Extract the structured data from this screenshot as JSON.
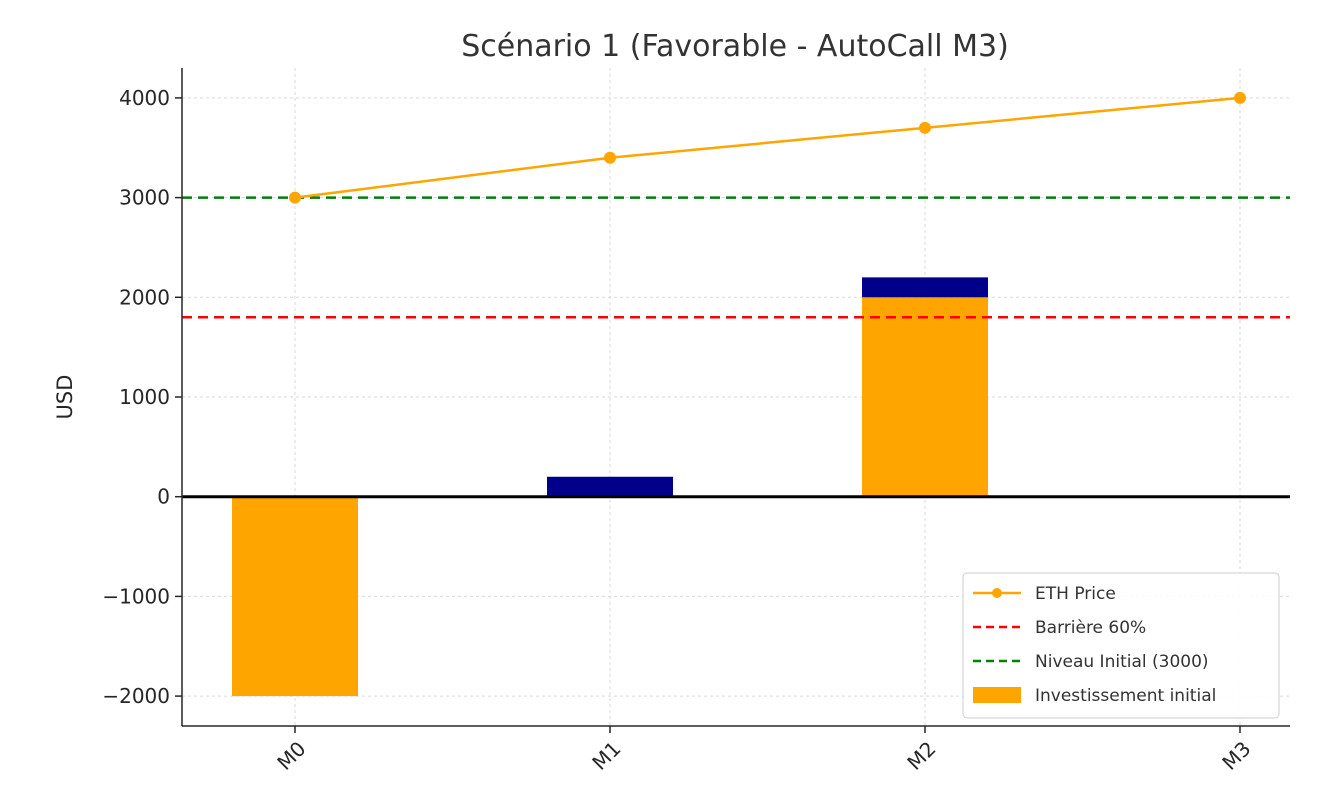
{
  "chart_data": {
    "type": "bar",
    "title": "Scénario 1 (Favorable - AutoCall M3)",
    "ylabel": "USD",
    "xlabel": "",
    "categories": [
      "M0",
      "M1",
      "M2",
      "M3"
    ],
    "ylim": [
      -2300,
      4300
    ],
    "yticks": [
      -2000,
      -1000,
      0,
      1000,
      2000,
      3000,
      4000
    ],
    "ytick_labels": [
      "−2000",
      "−1000",
      "0",
      "1000",
      "2000",
      "3000",
      "4000"
    ],
    "grid": true,
    "legend_position": "lower-right",
    "bars": [
      {
        "name": "Investissement initial",
        "color": "#FFA500",
        "values": [
          -2000,
          0,
          2000,
          0
        ]
      },
      {
        "name": "",
        "color": "#00008B",
        "values": [
          0,
          200,
          200,
          0
        ],
        "stacked_on": "Investissement initial"
      }
    ],
    "series": [
      {
        "name": "ETH Price",
        "type": "line",
        "color": "#FFA500",
        "marker": "circle",
        "values": [
          3000,
          3400,
          3700,
          4000
        ]
      }
    ],
    "hlines": [
      {
        "name": "Barrière 60%",
        "value": 1800,
        "color": "#FF0000",
        "style": "dashed"
      },
      {
        "name": "Niveau Initial (3000)",
        "value": 3000,
        "color": "#008000",
        "style": "dashed"
      }
    ],
    "legend": [
      "ETH Price",
      "Barrière 60%",
      "Niveau Initial (3000)",
      "Investissement initial"
    ]
  }
}
